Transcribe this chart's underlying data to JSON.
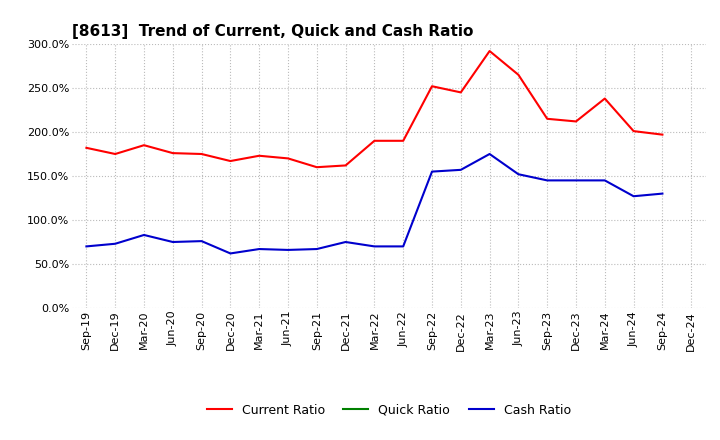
{
  "title": "[8613]  Trend of Current, Quick and Cash Ratio",
  "x_labels": [
    "Sep-19",
    "Dec-19",
    "Mar-20",
    "Jun-20",
    "Sep-20",
    "Dec-20",
    "Mar-21",
    "Jun-21",
    "Sep-21",
    "Dec-21",
    "Mar-22",
    "Jun-22",
    "Sep-22",
    "Dec-22",
    "Mar-23",
    "Jun-23",
    "Sep-23",
    "Dec-23",
    "Mar-24",
    "Jun-24",
    "Sep-24",
    "Dec-24"
  ],
  "current_ratio": [
    182,
    175,
    185,
    176,
    175,
    167,
    173,
    170,
    160,
    162,
    190,
    190,
    252,
    245,
    292,
    265,
    215,
    212,
    238,
    201,
    197,
    null
  ],
  "quick_ratio": [
    null,
    null,
    null,
    null,
    null,
    null,
    null,
    null,
    null,
    null,
    null,
    null,
    null,
    null,
    null,
    null,
    null,
    null,
    null,
    null,
    null,
    null
  ],
  "cash_ratio": [
    70,
    73,
    83,
    75,
    76,
    62,
    67,
    66,
    67,
    75,
    70,
    70,
    155,
    157,
    175,
    152,
    145,
    145,
    145,
    127,
    130,
    null
  ],
  "ylim": [
    0,
    300
  ],
  "yticks": [
    0,
    50,
    100,
    150,
    200,
    250,
    300
  ],
  "current_color": "#FF0000",
  "quick_color": "#008000",
  "cash_color": "#0000CD",
  "bg_color": "#FFFFFF",
  "grid_color": "#BBBBBB",
  "title_fontsize": 11,
  "axis_fontsize": 8,
  "legend_fontsize": 9
}
